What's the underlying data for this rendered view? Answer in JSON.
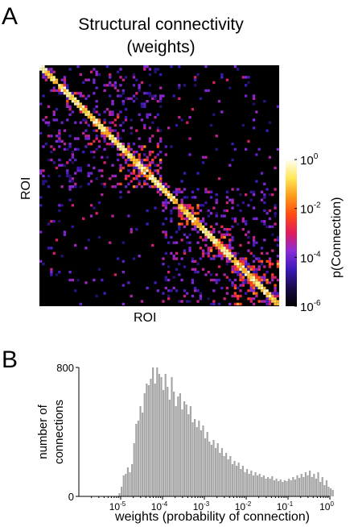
{
  "panel_a": {
    "letter": "A",
    "title_line1": "Structural connectivity",
    "title_line2": "(weights)",
    "x_label": "ROI",
    "y_label": "ROI",
    "colorbar": {
      "label": "p(Connection)",
      "ticks": [
        {
          "base": "10",
          "exp": "0"
        },
        {
          "base": "10",
          "exp": "-2"
        },
        {
          "base": "10",
          "exp": "-4"
        },
        {
          "base": "10",
          "exp": "-6"
        }
      ],
      "colors": [
        "#000000",
        "#1a0a4a",
        "#3a1ab8",
        "#8a2ad8",
        "#e01c5c",
        "#ff4a12",
        "#ff9a18",
        "#ffe858",
        "#fffff4"
      ]
    }
  },
  "panel_b": {
    "letter": "B"
  },
  "chart_data": [
    {
      "type": "heatmap",
      "title": "Structural connectivity (weights)",
      "xlabel": "ROI",
      "ylabel": "ROI",
      "colorbar_label": "p(Connection)",
      "color_scale": "log",
      "color_range": [
        1e-06,
        1
      ],
      "structure": "symmetric block-structured connectivity matrix with a bright diagonal and two large hemispheric blocks"
    },
    {
      "type": "bar",
      "xlabel": "weights (probability of connection)",
      "ylabel": "number of connections",
      "x_scale": "log",
      "xlim": [
        1e-06,
        1
      ],
      "ylim": [
        0,
        800
      ],
      "y_ticks": [
        0,
        800
      ],
      "x_ticks": [
        "10-5",
        "10-4",
        "10-3",
        "10-2",
        "10-1",
        "100"
      ],
      "bar_color": "#a6a6a6",
      "bins_log10_start": -5.05,
      "bins_log10_width": 0.05,
      "values": [
        20,
        60,
        130,
        140,
        180,
        150,
        200,
        330,
        450,
        470,
        560,
        520,
        640,
        700,
        690,
        730,
        800,
        700,
        800,
        760,
        740,
        660,
        760,
        680,
        600,
        740,
        650,
        560,
        620,
        640,
        540,
        590,
        570,
        510,
        560,
        460,
        480,
        430,
        470,
        410,
        440,
        360,
        400,
        340,
        320,
        350,
        300,
        330,
        270,
        300,
        250,
        270,
        230,
        250,
        200,
        220,
        190,
        210,
        170,
        190,
        150,
        170,
        140,
        160,
        130,
        150,
        130,
        140,
        120,
        130,
        110,
        120,
        110,
        125,
        100,
        110,
        95,
        105,
        90,
        100,
        95,
        110,
        100,
        120,
        105,
        130,
        115,
        140,
        120,
        150,
        130,
        160,
        120,
        140,
        110,
        150,
        90,
        120,
        70,
        100,
        60,
        50,
        40
      ]
    }
  ]
}
